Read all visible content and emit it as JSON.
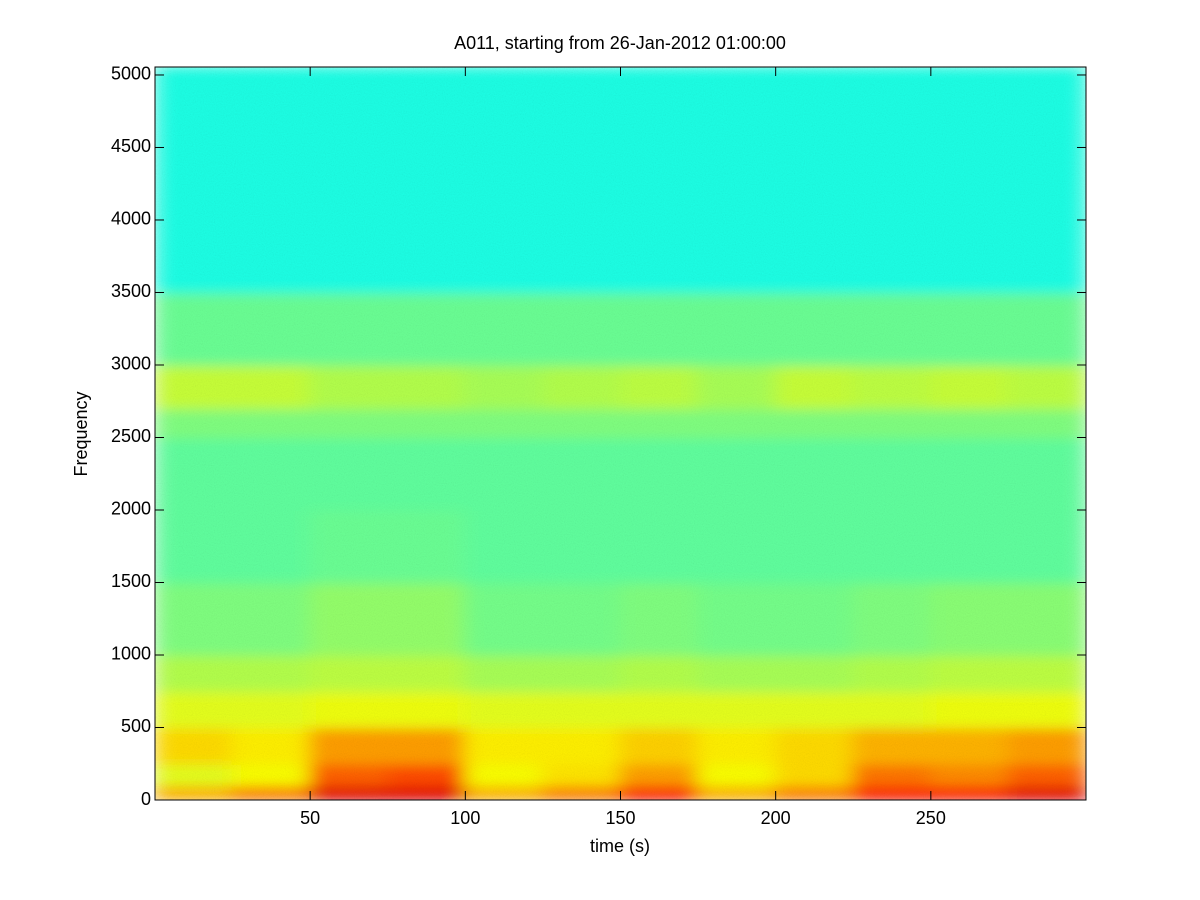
{
  "chart_data": {
    "type": "spectrogram",
    "title": "A011, starting from 26-Jan-2012 01:00:00",
    "xlabel": "time (s)",
    "ylabel": "Frequency",
    "xlim": [
      0,
      300
    ],
    "ylim": [
      0,
      5055
    ],
    "xticks": [
      50,
      100,
      150,
      200,
      250
    ],
    "yticks": [
      0,
      500,
      1000,
      1500,
      2000,
      2500,
      3000,
      3500,
      4000,
      4500,
      5000
    ],
    "colormap": "jet",
    "xbins": [
      0,
      25,
      50,
      75,
      100,
      125,
      150,
      175,
      200,
      225,
      250,
      275,
      300
    ],
    "ybins": [
      0,
      100,
      250,
      500,
      750,
      1000,
      1500,
      2000,
      2500,
      2700,
      3000,
      3500,
      5055
    ],
    "z": [
      [
        0.7,
        0.75,
        0.9,
        0.9,
        0.7,
        0.75,
        0.85,
        0.7,
        0.75,
        0.85,
        0.85,
        0.9
      ],
      [
        0.6,
        0.62,
        0.78,
        0.8,
        0.62,
        0.65,
        0.72,
        0.62,
        0.66,
        0.76,
        0.74,
        0.78
      ],
      [
        0.66,
        0.64,
        0.72,
        0.72,
        0.64,
        0.64,
        0.67,
        0.64,
        0.66,
        0.7,
        0.7,
        0.72
      ],
      [
        0.6,
        0.6,
        0.61,
        0.61,
        0.6,
        0.6,
        0.6,
        0.6,
        0.6,
        0.6,
        0.61,
        0.61
      ],
      [
        0.55,
        0.55,
        0.56,
        0.56,
        0.54,
        0.54,
        0.55,
        0.54,
        0.54,
        0.55,
        0.56,
        0.56
      ],
      [
        0.5,
        0.5,
        0.52,
        0.52,
        0.49,
        0.49,
        0.5,
        0.49,
        0.49,
        0.5,
        0.51,
        0.51
      ],
      [
        0.47,
        0.47,
        0.48,
        0.48,
        0.47,
        0.47,
        0.47,
        0.47,
        0.47,
        0.47,
        0.47,
        0.47
      ],
      [
        0.47,
        0.47,
        0.47,
        0.47,
        0.47,
        0.47,
        0.47,
        0.47,
        0.47,
        0.47,
        0.47,
        0.47
      ],
      [
        0.5,
        0.5,
        0.5,
        0.5,
        0.5,
        0.5,
        0.5,
        0.5,
        0.5,
        0.5,
        0.5,
        0.5
      ],
      [
        0.57,
        0.57,
        0.55,
        0.55,
        0.54,
        0.55,
        0.56,
        0.54,
        0.57,
        0.56,
        0.57,
        0.56
      ],
      [
        0.48,
        0.48,
        0.48,
        0.48,
        0.48,
        0.48,
        0.48,
        0.48,
        0.48,
        0.48,
        0.48,
        0.48
      ],
      [
        0.4,
        0.4,
        0.4,
        0.4,
        0.4,
        0.4,
        0.4,
        0.4,
        0.4,
        0.4,
        0.4,
        0.4
      ]
    ]
  }
}
